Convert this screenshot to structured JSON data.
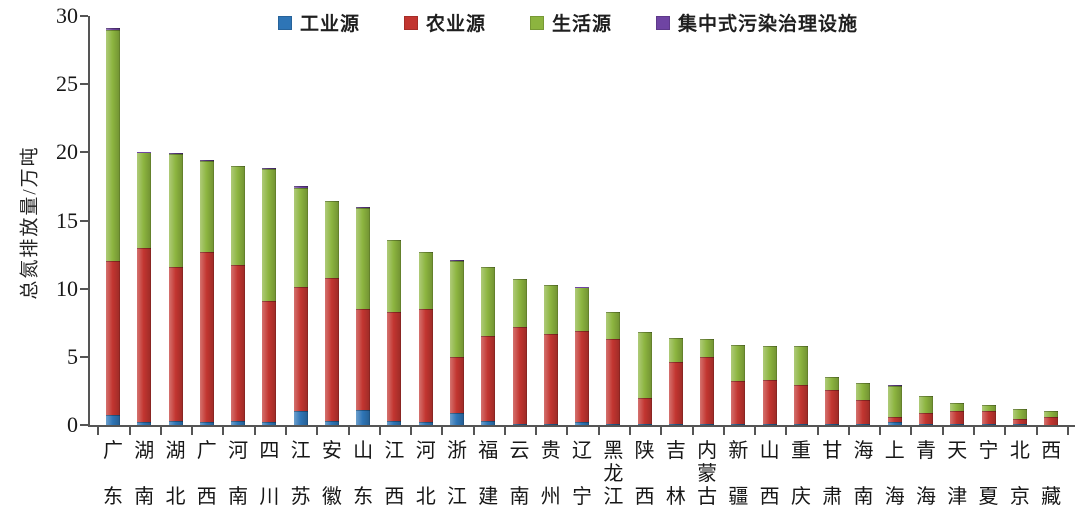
{
  "chart_data": {
    "type": "bar",
    "stacked": true,
    "title": "",
    "xlabel": "",
    "ylabel": "总氮排放量/万吨",
    "unit": "万吨",
    "ylim": [
      0,
      30
    ],
    "yticks": [
      0,
      5,
      10,
      15,
      20,
      25,
      30
    ],
    "grid": false,
    "legend_position": "top",
    "categories": [
      "广东",
      "湖南",
      "湖北",
      "广西",
      "河南",
      "四川",
      "江苏",
      "安徽",
      "山东",
      "江西",
      "河北",
      "浙江",
      "福建",
      "云南",
      "贵州",
      "辽宁",
      "黑龙江",
      "陕西",
      "吉林",
      "内蒙古",
      "新疆",
      "山西",
      "重庆",
      "甘肃",
      "海南",
      "上海",
      "青海",
      "天津",
      "宁夏",
      "北京",
      "西藏"
    ],
    "series": [
      {
        "name": "工业源",
        "color": "#2E75B6",
        "values": [
          0.7,
          0.2,
          0.3,
          0.2,
          0.3,
          0.2,
          1.0,
          0.3,
          1.1,
          0.3,
          0.2,
          0.9,
          0.3,
          0.1,
          0.1,
          0.2,
          0.1,
          0.1,
          0.1,
          0.1,
          0.1,
          0.1,
          0.1,
          0.1,
          0.1,
          0.2,
          0.05,
          0.05,
          0.05,
          0.05,
          0
        ]
      },
      {
        "name": "农业源",
        "color": "#C23530",
        "values": [
          11.3,
          12.8,
          11.3,
          12.5,
          11.4,
          8.9,
          9.1,
          10.5,
          7.4,
          8.0,
          8.3,
          4.1,
          6.2,
          7.1,
          6.6,
          6.7,
          6.2,
          1.9,
          4.5,
          4.9,
          3.1,
          3.2,
          2.8,
          2.5,
          1.7,
          0.4,
          0.85,
          1.0,
          1.0,
          0.4,
          0.6
        ]
      },
      {
        "name": "生活源",
        "color": "#8CB43F",
        "values": [
          17.0,
          7.0,
          8.3,
          6.7,
          7.3,
          9.7,
          7.3,
          5.6,
          7.4,
          5.3,
          4.2,
          7.0,
          5.1,
          3.5,
          3.6,
          3.2,
          2.0,
          4.8,
          1.8,
          1.3,
          2.7,
          2.5,
          2.9,
          0.9,
          1.3,
          2.25,
          1.2,
          0.6,
          0.45,
          0.7,
          0.45
        ]
      },
      {
        "name": "集中式污染治理设施",
        "color": "#6F44A3",
        "values": [
          0.1,
          0.05,
          0.05,
          0.05,
          0,
          0.05,
          0.1,
          0,
          0.1,
          0,
          0,
          0.1,
          0,
          0,
          0,
          0.05,
          0,
          0,
          0,
          0,
          0,
          0,
          0,
          0,
          0,
          0.05,
          0,
          0,
          0,
          0,
          0
        ]
      }
    ],
    "totals": [
      29.1,
      20.05,
      19.95,
      19.45,
      19.0,
      18.85,
      17.5,
      16.4,
      16.0,
      13.6,
      12.7,
      12.1,
      11.6,
      10.7,
      10.3,
      10.15,
      8.3,
      6.8,
      6.4,
      6.3,
      5.9,
      5.8,
      5.8,
      3.5,
      3.1,
      2.9,
      2.1,
      1.65,
      1.5,
      1.15,
      1.05
    ],
    "axis_color": "#555555",
    "text_color": "#171717"
  }
}
